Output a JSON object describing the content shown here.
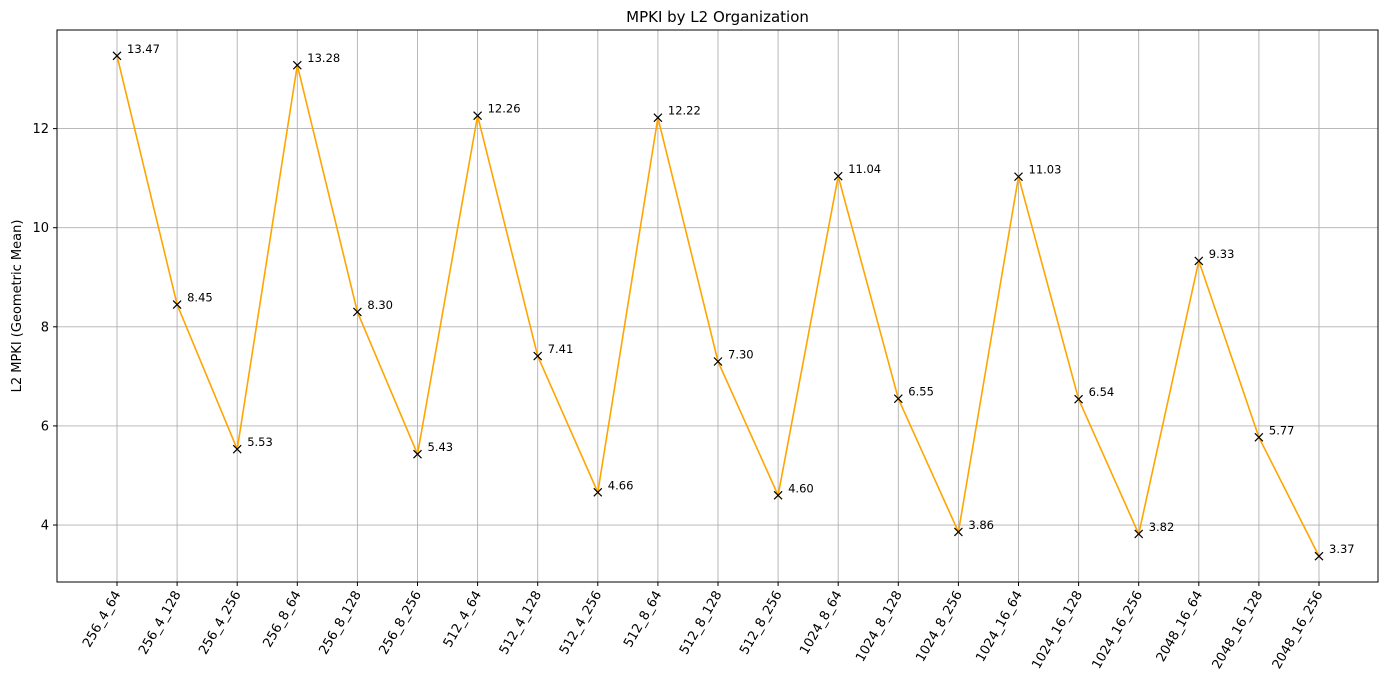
{
  "chart_data": {
    "type": "line",
    "title": "MPKI by L2 Organization",
    "xlabel": "",
    "ylabel": "L2 MPKI (Geometric Mean)",
    "categories": [
      "256_4_64",
      "256_4_128",
      "256_4_256",
      "256_8_64",
      "256_8_128",
      "256_8_256",
      "512_4_64",
      "512_4_128",
      "512_4_256",
      "512_8_64",
      "512_8_128",
      "512_8_256",
      "1024_8_64",
      "1024_8_128",
      "1024_8_256",
      "1024_16_64",
      "1024_16_128",
      "1024_16_256",
      "2048_16_64",
      "2048_16_128",
      "2048_16_256"
    ],
    "values": [
      13.47,
      8.45,
      5.53,
      13.28,
      8.3,
      5.43,
      12.26,
      7.41,
      4.66,
      12.22,
      7.3,
      4.6,
      11.04,
      6.55,
      3.86,
      11.03,
      6.54,
      3.82,
      9.33,
      5.77,
      3.37
    ],
    "value_labels": [
      "13.47",
      "8.45",
      "5.53",
      "13.28",
      "8.30",
      "5.43",
      "12.26",
      "7.41",
      "4.66",
      "12.22",
      "7.30",
      "4.60",
      "11.04",
      "6.55",
      "3.86",
      "11.03",
      "6.54",
      "3.82",
      "9.33",
      "5.77",
      "3.37"
    ],
    "ylim": [
      2.85,
      13.99
    ],
    "yticks": [
      4,
      6,
      8,
      10,
      12
    ],
    "grid": true,
    "line_color": "#ffa500",
    "marker": "x",
    "marker_color": "#000000"
  }
}
